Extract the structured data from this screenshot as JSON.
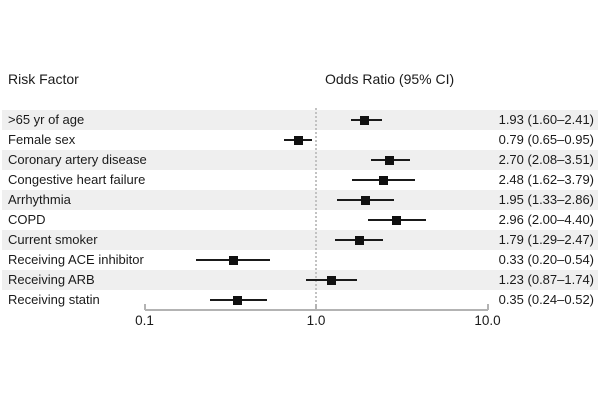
{
  "header": {
    "risk_factor": "Risk Factor",
    "odds_ratio": "Odds Ratio (95% CI)"
  },
  "axis": {
    "scale": "log",
    "ticks": [
      {
        "label": "0.1",
        "value": 0.1
      },
      {
        "label": "1.0",
        "value": 1.0
      },
      {
        "label": "10.0",
        "value": 10.0
      }
    ],
    "reference_value": 1.0
  },
  "chart_data": {
    "type": "forest",
    "title": "Odds Ratio (95% CI)",
    "x_scale": "log",
    "xlim": [
      0.1,
      10
    ],
    "reference_line": 1.0,
    "rows": [
      {
        "label": ">65 yr of age",
        "or": 1.93,
        "ci": [
          1.6,
          2.41
        ],
        "display": "1.93 (1.60–2.41)"
      },
      {
        "label": "Female sex",
        "or": 0.79,
        "ci": [
          0.65,
          0.95
        ],
        "display": "0.79 (0.65–0.95)"
      },
      {
        "label": "Coronary artery disease",
        "or": 2.7,
        "ci": [
          2.08,
          3.51
        ],
        "display": "2.70 (2.08–3.51)"
      },
      {
        "label": "Congestive heart failure",
        "or": 2.48,
        "ci": [
          1.62,
          3.79
        ],
        "display": "2.48 (1.62–3.79)"
      },
      {
        "label": "Arrhythmia",
        "or": 1.95,
        "ci": [
          1.33,
          2.86
        ],
        "display": "1.95 (1.33–2.86)"
      },
      {
        "label": "COPD",
        "or": 2.96,
        "ci": [
          2.0,
          4.4
        ],
        "display": "2.96 (2.00–4.40)"
      },
      {
        "label": "Current smoker",
        "or": 1.79,
        "ci": [
          1.29,
          2.47
        ],
        "display": "1.79 (1.29–2.47)"
      },
      {
        "label": "Receiving ACE inhibitor",
        "or": 0.33,
        "ci": [
          0.2,
          0.54
        ],
        "display": "0.33 (0.20–0.54)"
      },
      {
        "label": "Receiving ARB",
        "or": 1.23,
        "ci": [
          0.87,
          1.74
        ],
        "display": "1.23 (0.87–1.74)"
      },
      {
        "label": "Receiving statin",
        "or": 0.35,
        "ci": [
          0.24,
          0.52
        ],
        "display": "0.35 (0.24–0.52)"
      }
    ]
  },
  "colors": {
    "band": "#efefef",
    "marker": "#111111",
    "ci": "#1a1a1a",
    "axis": "#b3b3b3",
    "ref": "#c2c2c2",
    "text": "#1a1a1a"
  }
}
